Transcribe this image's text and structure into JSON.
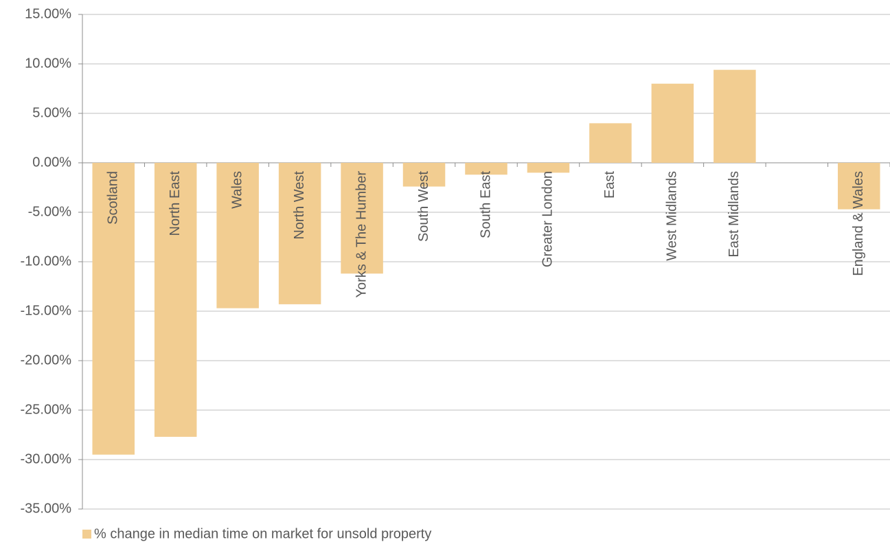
{
  "chart_data": {
    "type": "bar",
    "categories": [
      "Scotland",
      "North East",
      "Wales",
      "North West",
      "Yorks & The Humber",
      "South West",
      "South East",
      "Greater London",
      "East",
      "West Midlands",
      "East Midlands",
      null,
      "England & Wales"
    ],
    "series": [
      {
        "name": "% change in median time on market for unsold property",
        "color": "#f2cd91",
        "values": [
          -29.5,
          -27.7,
          -14.7,
          -14.3,
          -11.2,
          -2.4,
          -1.2,
          -1.0,
          4.0,
          8.0,
          9.4,
          null,
          -4.7
        ]
      }
    ],
    "ylim": [
      -35,
      15
    ],
    "yticks": [
      {
        "value": -35,
        "label": "-35.00%"
      },
      {
        "value": -30,
        "label": "-30.00%"
      },
      {
        "value": -25,
        "label": "-25.00%"
      },
      {
        "value": -20,
        "label": "-20.00%"
      },
      {
        "value": -15,
        "label": "-15.00%"
      },
      {
        "value": -10,
        "label": "-10.00%"
      },
      {
        "value": -5,
        "label": "-5.00%"
      },
      {
        "value": 0,
        "label": "0.00%"
      },
      {
        "value": 5,
        "label": "5.00%"
      },
      {
        "value": 10,
        "label": "10.00%"
      },
      {
        "value": 15,
        "label": "15.00%"
      }
    ],
    "grid": true,
    "legend": "bottom-left"
  }
}
